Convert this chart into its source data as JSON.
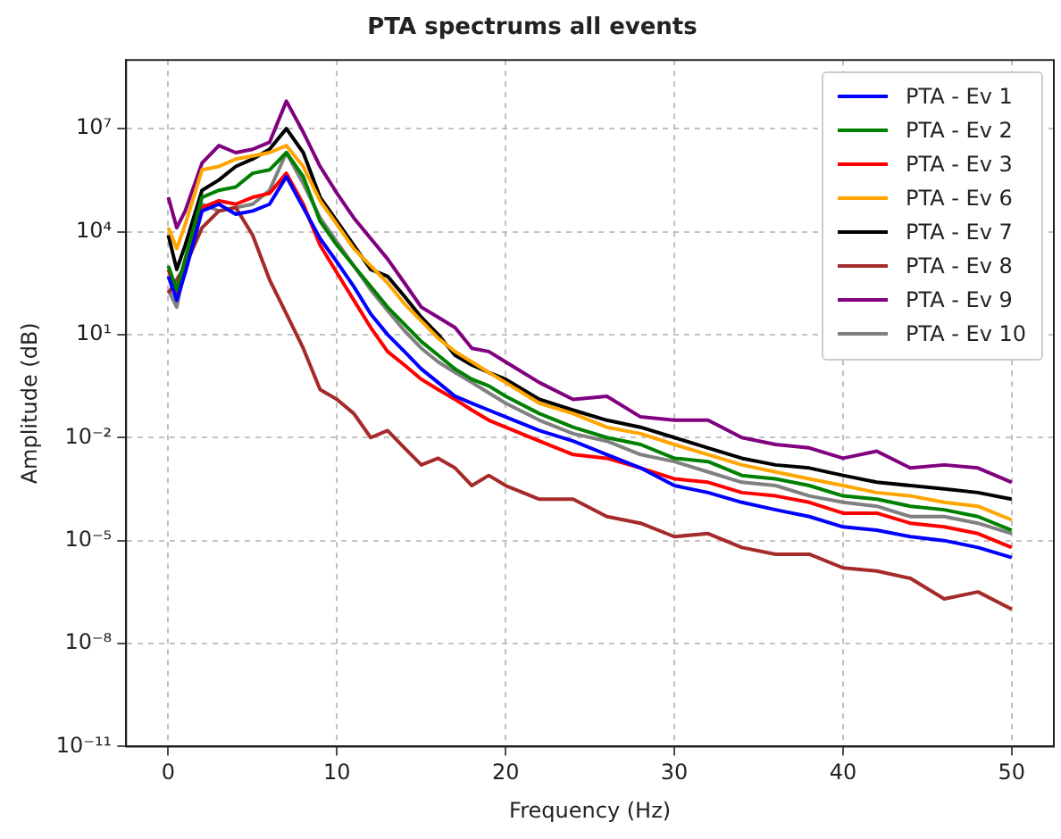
{
  "chart_data": {
    "type": "line",
    "title": "PTA spectrums all events",
    "xlabel": "Frequency (Hz)",
    "ylabel": "Amplitude (dB)",
    "log": "y",
    "grid": true,
    "legend": "top right",
    "xlim": [
      -2.5,
      52.5
    ],
    "xticks": [
      0,
      10,
      20,
      30,
      40,
      50
    ],
    "ylim": [
      1e-11,
      1000000000.0
    ],
    "yticks": [
      {
        "value": 1e-11,
        "label": "10⁻¹¹"
      },
      {
        "value": 1e-08,
        "label": "10⁻⁸"
      },
      {
        "value": 1e-05,
        "label": "10⁻⁵"
      },
      {
        "value": 0.01,
        "label": "10⁻²"
      },
      {
        "value": 10,
        "label": "10¹"
      },
      {
        "value": 10000,
        "label": "10⁴"
      },
      {
        "value": 10000000,
        "label": "10⁷"
      }
    ],
    "x": [
      0,
      0.5,
      1,
      2,
      3,
      4,
      5,
      6,
      7,
      8,
      9,
      10,
      11,
      12,
      13,
      14,
      15,
      16,
      17,
      18,
      19,
      20,
      22,
      24,
      26,
      28,
      30,
      32,
      34,
      36,
      38,
      40,
      42,
      44,
      46,
      48,
      50
    ],
    "series": [
      {
        "name": "PTA - Ev 1",
        "color": "#0000ff",
        "values": [
          500,
          100,
          630,
          40000.0,
          63000.0,
          32000.0,
          40000.0,
          63000.0,
          400000.0,
          50000.0,
          6300.0,
          1300.0,
          250,
          40,
          10,
          3.2,
          1,
          0.4,
          0.16,
          0.1,
          0.063,
          0.04,
          0.016,
          0.0079,
          0.0032,
          0.0013,
          0.0004,
          0.00025,
          0.00013,
          7.9e-05,
          5e-05,
          2.5e-05,
          2e-05,
          1.3e-05,
          1e-05,
          6.3e-06,
          3.2e-06
        ]
      },
      {
        "name": "PTA - Ev 2",
        "color": "#008000",
        "values": [
          1000.0,
          200,
          1600.0,
          100000.0,
          160000.0,
          200000.0,
          500000.0,
          630000.0,
          2000000.0,
          400000.0,
          20000.0,
          4000.0,
          1000.0,
          250,
          63,
          20,
          6.3,
          2.5,
          1,
          0.5,
          0.32,
          0.16,
          0.05,
          0.02,
          0.01,
          0.0063,
          0.0025,
          0.002,
          0.00079,
          0.00063,
          0.0004,
          0.0002,
          0.00016,
          0.0001,
          7.9e-05,
          5e-05,
          2e-05
        ]
      },
      {
        "name": "PTA - Ev 3",
        "color": "#ff0000",
        "values": [
          790,
          160,
          1000.0,
          50000.0,
          79000.0,
          63000.0,
          100000.0,
          130000.0,
          500000.0,
          63000.0,
          4000.0,
          630,
          100,
          16,
          3.2,
          1.3,
          0.5,
          0.25,
          0.13,
          0.063,
          0.032,
          0.02,
          0.0079,
          0.0032,
          0.0025,
          0.0013,
          0.00063,
          0.0005,
          0.00025,
          0.0002,
          0.00013,
          6.3e-05,
          6.3e-05,
          3.2e-05,
          2.5e-05,
          1.6e-05,
          6.3e-06
        ]
      },
      {
        "name": "PTA - Ev 6",
        "color": "#ffa500",
        "values": [
          13000.0,
          3200.0,
          16000.0,
          630000.0,
          790000.0,
          1300000.0,
          1600000.0,
          2000000.0,
          3200000.0,
          790000.0,
          79000.0,
          16000.0,
          3200.0,
          1000.0,
          320,
          79,
          25,
          7.9,
          3.2,
          1.6,
          0.79,
          0.4,
          0.1,
          0.05,
          0.02,
          0.013,
          0.0063,
          0.0032,
          0.0016,
          0.001,
          0.00063,
          0.0004,
          0.00025,
          0.0002,
          0.00013,
          0.0001,
          4e-05
        ]
      },
      {
        "name": "PTA - Ev 7",
        "color": "#000000",
        "values": [
          7900.0,
          790,
          4000.0,
          160000.0,
          320000.0,
          790000.0,
          1300000.0,
          2500000.0,
          10000000.0,
          2000000.0,
          100000.0,
          20000.0,
          4000.0,
          790,
          500,
          130,
          32,
          10,
          2.5,
          1.3,
          0.79,
          0.5,
          0.13,
          0.063,
          0.032,
          0.02,
          0.01,
          0.005,
          0.0025,
          0.0016,
          0.0013,
          0.00079,
          0.0005,
          0.0004,
          0.00032,
          0.00025,
          0.00016
        ]
      },
      {
        "name": "PTA - Ev 8",
        "color": "#a52a2a",
        "values": [
          160,
          400,
          1000.0,
          13000.0,
          40000.0,
          50000.0,
          7900.0,
          400,
          40,
          4,
          0.25,
          0.13,
          0.05,
          0.01,
          0.016,
          0.005,
          0.0016,
          0.0025,
          0.0013,
          0.0004,
          0.00079,
          0.0004,
          0.00016,
          0.00016,
          5e-05,
          3.2e-05,
          1.3e-05,
          1.6e-05,
          6.3e-06,
          4e-06,
          4e-06,
          1.6e-06,
          1.3e-06,
          7.9e-07,
          2e-07,
          3.2e-07,
          1e-07
        ]
      },
      {
        "name": "PTA - Ev 9",
        "color": "#800080",
        "values": [
          100000.0,
          13000.0,
          40000.0,
          1000000.0,
          3200000.0,
          2000000.0,
          2500000.0,
          4000000.0,
          63000000.0,
          7900000.0,
          790000.0,
          130000.0,
          25000.0,
          6300.0,
          1600.0,
          320,
          63,
          32,
          16,
          4,
          3.2,
          1.6,
          0.4,
          0.13,
          0.16,
          0.04,
          0.032,
          0.032,
          0.01,
          0.0063,
          0.005,
          0.0025,
          0.004,
          0.0013,
          0.0016,
          0.0013,
          0.0005
        ]
      },
      {
        "name": "PTA - Ev 10",
        "color": "#808080",
        "values": [
          200,
          63,
          1000.0,
          63000.0,
          40000.0,
          50000.0,
          63000.0,
          160000.0,
          2000000.0,
          250000.0,
          25000.0,
          5000.0,
          1000.0,
          200,
          50,
          13,
          4,
          1.6,
          0.79,
          0.4,
          0.2,
          0.1,
          0.032,
          0.013,
          0.0079,
          0.0032,
          0.002,
          0.001,
          0.0005,
          0.0004,
          0.0002,
          0.00013,
          0.0001,
          5e-05,
          5e-05,
          3.2e-05,
          1.6e-05
        ]
      }
    ]
  }
}
